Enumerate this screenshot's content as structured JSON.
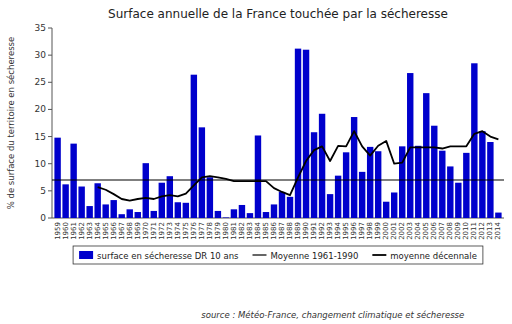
{
  "chart_data": {
    "type": "bar",
    "title": "Surface annuelle de la France touchée par la sécheresse",
    "ylabel": "% de surface du territoire en sécheresse",
    "source": "source : Météo-France, changement climatique et sécheresse",
    "categories": [
      "1959",
      "1960",
      "1961",
      "1962",
      "1963",
      "1964",
      "1965",
      "1966",
      "1967",
      "1968",
      "1969",
      "1970",
      "1971",
      "1972",
      "1973",
      "1974",
      "1975",
      "1976",
      "1977",
      "1978",
      "1979",
      "1980",
      "1981",
      "1982",
      "1983",
      "1984",
      "1985",
      "1986",
      "1987",
      "1988",
      "1989",
      "1990",
      "1991",
      "1992",
      "1993",
      "1994",
      "1995",
      "1996",
      "1997",
      "1998",
      "1999",
      "2000",
      "2001",
      "2002",
      "2003",
      "2004",
      "2005",
      "2006",
      "2007",
      "2008",
      "2009",
      "2010",
      "2011",
      "2012",
      "2013",
      "2014"
    ],
    "series": [
      {
        "name": "surface en sécheresse DR 10 ans",
        "type": "bar",
        "color": "#0000cc",
        "values": [
          14.8,
          6.2,
          13.7,
          5.8,
          2.2,
          6.4,
          2.5,
          3.3,
          0.7,
          1.6,
          1.1,
          10.1,
          1.3,
          6.5,
          7.7,
          2.9,
          2.8,
          26.4,
          16.7,
          7.5,
          1.3,
          0.1,
          1.6,
          2.4,
          0.9,
          15.2,
          1.1,
          2.5,
          4.8,
          3.9,
          31.2,
          31.0,
          15.8,
          19.2,
          4.4,
          7.8,
          12.1,
          18.6,
          8.5,
          13.1,
          12.3,
          3.0,
          4.7,
          13.2,
          26.7,
          13.3,
          23.0,
          17.0,
          12.4,
          9.5,
          6.5,
          12.0,
          28.5,
          16.0,
          14.0,
          1.0
        ]
      },
      {
        "name": "Moyenne 1961-1990",
        "type": "hline",
        "color": "#000000",
        "value": 7.0
      },
      {
        "name": "moyenne décennale",
        "type": "line",
        "color": "#000000",
        "values": [
          null,
          null,
          null,
          null,
          null,
          5.7,
          5.2,
          4.4,
          3.5,
          3.2,
          3.5,
          3.7,
          3.5,
          4.0,
          4.2,
          4.0,
          4.5,
          6.0,
          7.5,
          7.7,
          7.5,
          7.2,
          6.8,
          6.8,
          6.8,
          6.8,
          6.8,
          5.5,
          4.8,
          4.2,
          7.5,
          10.5,
          12.5,
          13.2,
          10.5,
          13.3,
          13.2,
          16.0,
          13.2,
          11.5,
          13.3,
          14.2,
          10.0,
          10.2,
          13.0,
          13.0,
          13.0,
          13.0,
          12.8,
          13.2,
          13.2,
          13.2,
          15.5,
          16.0,
          15.0,
          14.5
        ]
      }
    ],
    "ylim": [
      0,
      35
    ],
    "yticks": [
      0,
      5,
      10,
      15,
      20,
      25,
      30,
      35
    ],
    "grid": false,
    "legend": "bottom"
  }
}
